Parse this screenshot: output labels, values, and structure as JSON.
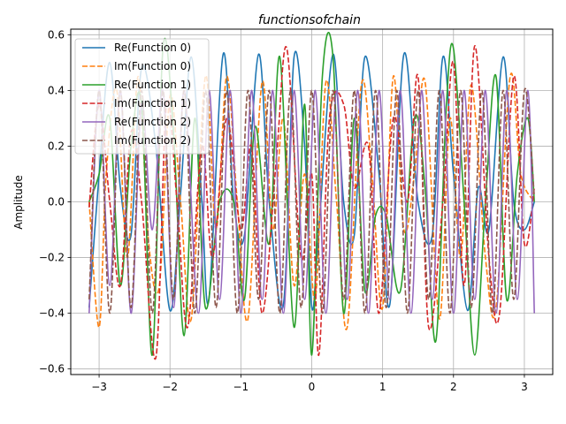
{
  "chart_data": {
    "type": "line",
    "title": "functionsofchain",
    "xlabel": "",
    "ylabel": "Amplitude",
    "xlim": [
      -3.4,
      3.4
    ],
    "ylim": [
      -0.62,
      0.62
    ],
    "grid": true,
    "legend_position": "top-left",
    "x_ticks": [
      -3,
      -2,
      -1,
      0,
      1,
      2,
      3
    ],
    "x_tick_labels": [
      "−3",
      "−2",
      "−1",
      "0",
      "1",
      "2",
      "3"
    ],
    "y_ticks": [
      -0.6,
      -0.4,
      -0.2,
      0.0,
      0.2,
      0.4,
      0.6
    ],
    "y_tick_labels": [
      "−0.6",
      "−0.4",
      "−0.2",
      "0.0",
      "0.2",
      "0.4",
      "0.6"
    ],
    "series": [
      {
        "name": "Re(Function 0)",
        "color": "#1f77b4",
        "style": "solid",
        "x": [
          -3.14,
          -3.0,
          -2.85,
          -2.7,
          -2.55,
          -2.4,
          -2.2,
          -2.0,
          -1.85,
          -1.7,
          -1.55,
          -1.45,
          -1.25,
          -1.1,
          -0.95,
          -0.75,
          -0.6,
          -0.4,
          -0.25,
          -0.1,
          0.0,
          0.1,
          0.3,
          0.45,
          0.6,
          0.75,
          0.95,
          1.1,
          1.3,
          1.5,
          1.7,
          1.85,
          2.0,
          2.2,
          2.35,
          2.5,
          2.7,
          2.85,
          3.0,
          3.14
        ],
        "y": [
          -0.38,
          0.1,
          0.5,
          0.05,
          -0.12,
          0.48,
          0.2,
          -0.39,
          0.03,
          0.52,
          0.0,
          -0.35,
          0.53,
          0.0,
          -0.12,
          0.53,
          0.0,
          -0.37,
          0.52,
          0.2,
          -0.38,
          -0.1,
          0.53,
          0.0,
          -0.12,
          0.52,
          0.1,
          -0.37,
          0.53,
          0.0,
          -0.12,
          0.52,
          0.1,
          -0.39,
          0.05,
          -0.1,
          0.52,
          0.0,
          -0.1,
          0.0
        ]
      },
      {
        "name": "Im(Function 0)",
        "color": "#ff7f0e",
        "style": "dashed",
        "x": [
          -3.14,
          -3.0,
          -2.9,
          -2.75,
          -2.6,
          -2.45,
          -2.3,
          -2.15,
          -2.0,
          -1.85,
          -1.7,
          -1.5,
          -1.35,
          -1.2,
          -1.05,
          -0.9,
          -0.7,
          -0.55,
          -0.4,
          -0.25,
          -0.1,
          0.05,
          0.2,
          0.35,
          0.5,
          0.7,
          0.85,
          1.0,
          1.15,
          1.3,
          1.45,
          1.6,
          1.8,
          1.95,
          2.1,
          2.25,
          2.45,
          2.6,
          2.8,
          2.95,
          3.14
        ],
        "y": [
          0.0,
          -0.45,
          0.1,
          0.4,
          -0.2,
          0.45,
          -0.15,
          -0.3,
          0.38,
          0.0,
          -0.42,
          0.45,
          -0.1,
          0.45,
          0.0,
          -0.42,
          0.43,
          -0.1,
          0.3,
          -0.3,
          0.1,
          -0.35,
          0.43,
          0.0,
          -0.45,
          0.42,
          0.1,
          -0.38,
          0.45,
          -0.1,
          0.1,
          0.43,
          -0.42,
          0.3,
          -0.2,
          0.42,
          -0.2,
          -0.38,
          0.45,
          0.1,
          0.0
        ]
      },
      {
        "name": "Re(Function 1)",
        "color": "#2ca02c",
        "style": "solid",
        "x": [
          -3.14,
          -3.0,
          -2.85,
          -2.7,
          -2.55,
          -2.4,
          -2.25,
          -2.1,
          -1.95,
          -1.8,
          -1.65,
          -1.5,
          -1.3,
          -1.1,
          -0.95,
          -0.8,
          -0.6,
          -0.45,
          -0.25,
          -0.1,
          0.0,
          0.15,
          0.3,
          0.45,
          0.6,
          0.75,
          0.9,
          1.05,
          1.25,
          1.45,
          1.6,
          1.75,
          1.9,
          2.0,
          2.15,
          2.3,
          2.45,
          2.6,
          2.75,
          2.9,
          3.05,
          3.14
        ],
        "y": [
          0.0,
          0.1,
          0.3,
          -0.3,
          0.2,
          0.35,
          -0.55,
          0.55,
          0.25,
          -0.48,
          0.3,
          -0.38,
          0.0,
          0.0,
          -0.35,
          0.27,
          -0.15,
          0.52,
          -0.45,
          0.35,
          -0.55,
          0.45,
          0.52,
          -0.4,
          0.3,
          -0.32,
          -0.05,
          -0.05,
          -0.32,
          0.3,
          0.05,
          -0.5,
          0.35,
          0.55,
          0.0,
          -0.55,
          0.0,
          0.45,
          -0.35,
          0.1,
          0.3,
          0.0
        ]
      },
      {
        "name": "Im(Function 1)",
        "color": "#d62728",
        "style": "dashed",
        "x": [
          -3.14,
          -3.0,
          -2.85,
          -2.7,
          -2.55,
          -2.4,
          -2.2,
          -2.05,
          -1.9,
          -1.75,
          -1.55,
          -1.4,
          -1.2,
          -1.0,
          -0.85,
          -0.7,
          -0.5,
          -0.35,
          -0.15,
          0.0,
          0.1,
          0.25,
          0.45,
          0.6,
          0.8,
          0.95,
          1.15,
          1.35,
          1.5,
          1.65,
          1.85,
          2.0,
          2.15,
          2.3,
          2.5,
          2.65,
          2.85,
          3.0,
          3.14
        ],
        "y": [
          -0.02,
          0.35,
          0.0,
          -0.3,
          0.25,
          0.0,
          -0.56,
          0.35,
          0.0,
          -0.45,
          0.2,
          -0.2,
          0.3,
          -0.1,
          0.2,
          -0.4,
          0.15,
          0.55,
          -0.2,
          0.1,
          -0.55,
          0.3,
          0.35,
          0.05,
          0.2,
          -0.4,
          0.3,
          0.0,
          0.45,
          -0.45,
          0.0,
          0.5,
          -0.3,
          0.56,
          -0.2,
          -0.4,
          0.45,
          -0.15,
          0.05
        ]
      },
      {
        "name": "Re(Function 2)",
        "color": "#9467bd",
        "style": "solid",
        "x": [
          -3.14,
          -3.0,
          -2.85,
          -2.7,
          -2.55,
          -2.4,
          -2.25,
          -2.1,
          -1.95,
          -1.8,
          -1.6,
          -1.45,
          -1.3,
          -1.15,
          -1.0,
          -0.85,
          -0.7,
          -0.55,
          -0.4,
          -0.25,
          -0.1,
          0.05,
          0.2,
          0.35,
          0.5,
          0.65,
          0.8,
          0.95,
          1.1,
          1.25,
          1.4,
          1.55,
          1.7,
          1.85,
          2.0,
          2.15,
          2.3,
          2.45,
          2.6,
          2.75,
          2.9,
          3.05,
          3.14
        ],
        "y": [
          -0.4,
          0.4,
          -0.3,
          0.4,
          -0.4,
          0.35,
          -0.1,
          0.4,
          -0.38,
          0.4,
          -0.4,
          0.4,
          -0.35,
          0.4,
          -0.4,
          0.4,
          -0.35,
          0.4,
          -0.4,
          0.4,
          -0.35,
          0.4,
          -0.4,
          0.4,
          -0.35,
          0.4,
          -0.4,
          0.4,
          -0.35,
          0.4,
          -0.4,
          0.4,
          -0.35,
          0.4,
          -0.4,
          0.4,
          -0.35,
          0.4,
          -0.4,
          0.4,
          -0.35,
          0.4,
          -0.4
        ]
      },
      {
        "name": "Im(Function 2)",
        "color": "#8c564b",
        "style": "dashed",
        "x": [
          -3.14,
          -3.0,
          -2.85,
          -2.7,
          -2.55,
          -2.4,
          -2.25,
          -2.1,
          -1.95,
          -1.8,
          -1.65,
          -1.5,
          -1.35,
          -1.2,
          -1.05,
          -0.9,
          -0.75,
          -0.6,
          -0.45,
          -0.3,
          -0.15,
          0.0,
          0.15,
          0.3,
          0.45,
          0.6,
          0.75,
          0.9,
          1.05,
          1.2,
          1.35,
          1.5,
          1.65,
          1.8,
          1.95,
          2.1,
          2.25,
          2.4,
          2.55,
          2.7,
          2.85,
          3.0,
          3.14
        ],
        "y": [
          -0.35,
          0.4,
          -0.4,
          0.4,
          -0.38,
          0.4,
          -0.4,
          0.4,
          -0.35,
          0.4,
          -0.4,
          0.4,
          -0.38,
          0.4,
          -0.4,
          0.4,
          -0.35,
          0.4,
          -0.4,
          0.4,
          -0.38,
          0.4,
          -0.4,
          0.4,
          -0.35,
          0.4,
          -0.4,
          0.4,
          -0.38,
          0.4,
          -0.4,
          0.4,
          -0.35,
          0.4,
          -0.4,
          0.4,
          -0.38,
          0.4,
          -0.4,
          0.4,
          -0.35,
          0.4,
          0.02
        ]
      }
    ]
  }
}
